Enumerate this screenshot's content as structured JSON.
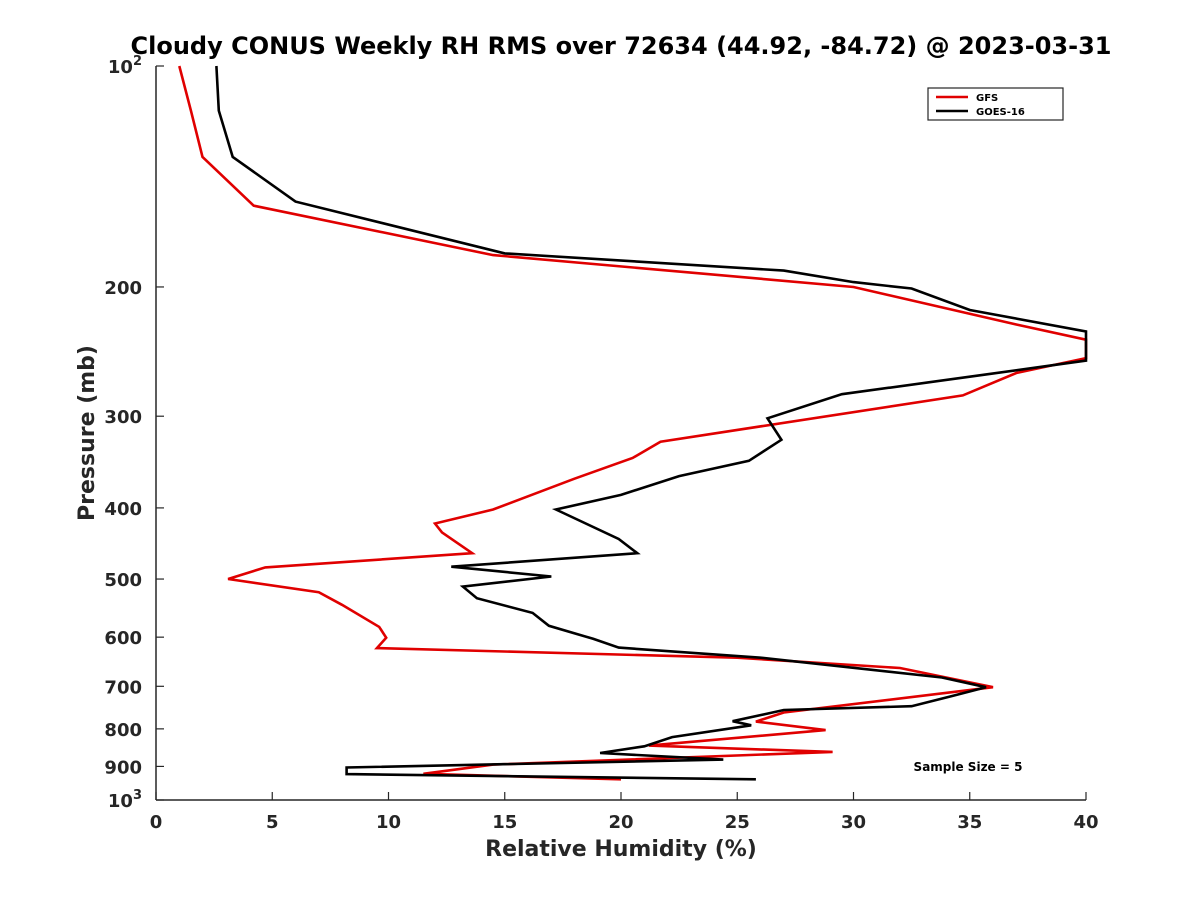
{
  "chart_data": {
    "type": "line",
    "title": "Cloudy CONUS Weekly RH RMS over 72634 (44.92, -84.72) @ 2023-03-31",
    "xlabel": "Relative Humidity (%)",
    "ylabel": "Pressure (mb)",
    "xlim": [
      0,
      40
    ],
    "ylim": [
      100,
      1000
    ],
    "y_scale": "log",
    "y_reversed": true,
    "x_ticks": [
      "0",
      "5",
      "10",
      "15",
      "20",
      "25",
      "30",
      "35",
      "40"
    ],
    "y_ticks": [
      {
        "value": 100,
        "base": "10",
        "exp": "2"
      },
      {
        "value": 200,
        "label": "200"
      },
      {
        "value": 300,
        "label": "300"
      },
      {
        "value": 400,
        "label": "400"
      },
      {
        "value": 500,
        "label": "500"
      },
      {
        "value": 600,
        "label": "600"
      },
      {
        "value": 700,
        "label": "700"
      },
      {
        "value": 800,
        "label": "800"
      },
      {
        "value": 900,
        "label": "900"
      },
      {
        "value": 1000,
        "base": "10",
        "exp": "3"
      }
    ],
    "grid": false,
    "legend_position": "top-right",
    "annotation": "Sample Size = 5",
    "series": [
      {
        "name": "GFS",
        "color": "#e00000",
        "points": [
          [
            1.0,
            100
          ],
          [
            1.5,
            115
          ],
          [
            2.0,
            133
          ],
          [
            4.2,
            155
          ],
          [
            14.5,
            181
          ],
          [
            30.0,
            200
          ],
          [
            37.0,
            225
          ],
          [
            40.0,
            236
          ],
          [
            40.0,
            250
          ],
          [
            37.0,
            262
          ],
          [
            34.7,
            281
          ],
          [
            21.7,
            325
          ],
          [
            20.5,
            342
          ],
          [
            18.0,
            365
          ],
          [
            14.5,
            402
          ],
          [
            12.0,
            420
          ],
          [
            12.3,
            432
          ],
          [
            13.6,
            461
          ],
          [
            4.7,
            482
          ],
          [
            3.1,
            500
          ],
          [
            7.0,
            521
          ],
          [
            8.0,
            542
          ],
          [
            9.6,
            581
          ],
          [
            9.9,
            601
          ],
          [
            9.5,
            621
          ],
          [
            25.0,
            640
          ],
          [
            32.0,
            661
          ],
          [
            36.0,
            702
          ],
          [
            27.0,
            760
          ],
          [
            25.8,
            782
          ],
          [
            28.8,
            803
          ],
          [
            21.2,
            843
          ],
          [
            29.1,
            860
          ],
          [
            14.5,
            895
          ],
          [
            11.5,
            921
          ],
          [
            20.0,
            937
          ]
        ]
      },
      {
        "name": "GOES-16",
        "color": "#000000",
        "points": [
          [
            2.6,
            100
          ],
          [
            2.7,
            115
          ],
          [
            3.3,
            133
          ],
          [
            6.0,
            153
          ],
          [
            15.0,
            180
          ],
          [
            27.0,
            190
          ],
          [
            30.0,
            197
          ],
          [
            32.5,
            201
          ],
          [
            35.0,
            215
          ],
          [
            40.0,
            230
          ],
          [
            40.0,
            252
          ],
          [
            35.0,
            265
          ],
          [
            29.5,
            280
          ],
          [
            26.3,
            302
          ],
          [
            26.9,
            323
          ],
          [
            25.5,
            345
          ],
          [
            22.5,
            362
          ],
          [
            20.0,
            384
          ],
          [
            17.2,
            402
          ],
          [
            19.9,
            441
          ],
          [
            20.7,
            461
          ],
          [
            12.7,
            481
          ],
          [
            17.0,
            496
          ],
          [
            13.2,
            512
          ],
          [
            13.8,
            531
          ],
          [
            16.2,
            556
          ],
          [
            16.9,
            579
          ],
          [
            18.8,
            603
          ],
          [
            19.9,
            620
          ],
          [
            26.0,
            640
          ],
          [
            33.8,
            681
          ],
          [
            35.7,
            702
          ],
          [
            34.2,
            722
          ],
          [
            32.5,
            745
          ],
          [
            27.0,
            754
          ],
          [
            24.8,
            781
          ],
          [
            25.6,
            791
          ],
          [
            22.2,
            821
          ],
          [
            21.0,
            845
          ],
          [
            19.1,
            863
          ],
          [
            24.4,
            881
          ],
          [
            8.2,
            903
          ],
          [
            8.2,
            922
          ],
          [
            25.8,
            937
          ]
        ]
      }
    ]
  }
}
